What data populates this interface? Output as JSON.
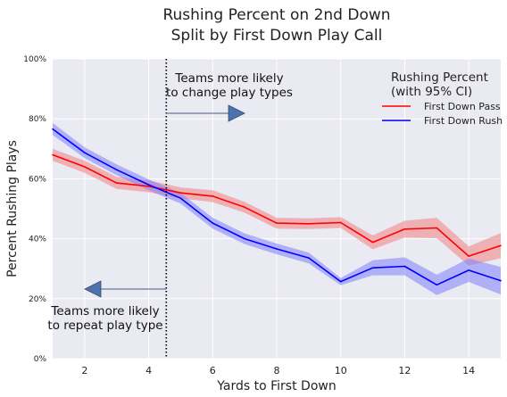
{
  "chart_data": {
    "type": "line",
    "title_line1": "Rushing Percent on 2nd Down",
    "title_line2": "Split by First Down Play Call",
    "xlabel": "Yards to First Down",
    "ylabel": "Percent Rushing Plays",
    "xlim": [
      1,
      15
    ],
    "ylim": [
      0,
      100
    ],
    "xticks": [
      2,
      4,
      6,
      8,
      10,
      12,
      14
    ],
    "yticks": [
      0,
      20,
      40,
      60,
      80,
      100
    ],
    "ytick_labels": [
      "0%",
      "20%",
      "40%",
      "60%",
      "80%",
      "100%"
    ],
    "grid": true,
    "legend_title_line1": "Rushing Percent",
    "legend_title_line2": "(with 95% CI)",
    "legend_position": "top-right",
    "x": [
      1,
      2,
      3,
      4,
      5,
      6,
      7,
      8,
      9,
      10,
      11,
      12,
      13,
      14,
      15
    ],
    "series": [
      {
        "name": "First Down Pass",
        "color": "#ff0000",
        "band_color": "#f08080",
        "values": [
          68.0,
          64.0,
          58.6,
          57.5,
          55.3,
          54.2,
          50.5,
          45.2,
          45.0,
          45.4,
          38.8,
          43.2,
          43.6,
          34.2,
          37.7
        ],
        "ci_low": [
          66.0,
          62.0,
          56.6,
          55.5,
          53.5,
          52.2,
          48.7,
          43.4,
          43.2,
          43.6,
          36.5,
          40.4,
          40.2,
          31.0,
          33.5
        ],
        "ci_high": [
          70.0,
          66.0,
          60.6,
          59.5,
          57.1,
          56.2,
          52.3,
          47.0,
          46.8,
          47.2,
          41.1,
          46.0,
          47.0,
          37.4,
          41.9
        ]
      },
      {
        "name": "First Down Rush",
        "color": "#0000ff",
        "band_color": "#8080ff",
        "values": [
          76.6,
          68.7,
          63.0,
          58.0,
          53.5,
          45.2,
          40.0,
          36.6,
          33.6,
          25.7,
          30.3,
          30.8,
          24.6,
          29.5,
          26.0
        ],
        "ci_low": [
          74.6,
          66.9,
          61.2,
          56.2,
          51.7,
          43.4,
          38.2,
          34.8,
          31.8,
          24.5,
          27.8,
          27.8,
          21.2,
          25.6,
          21.4
        ],
        "ci_high": [
          78.6,
          70.5,
          64.8,
          59.8,
          55.3,
          47.0,
          41.8,
          38.4,
          35.4,
          26.9,
          32.8,
          33.8,
          28.0,
          33.4,
          30.6
        ]
      }
    ],
    "reference_line_x": 4.55,
    "annotations": {
      "right_line1": "Teams more likely",
      "right_line2": "to change play types",
      "left_line1": "Teams more likely",
      "left_line2": "to repeat play type"
    }
  }
}
